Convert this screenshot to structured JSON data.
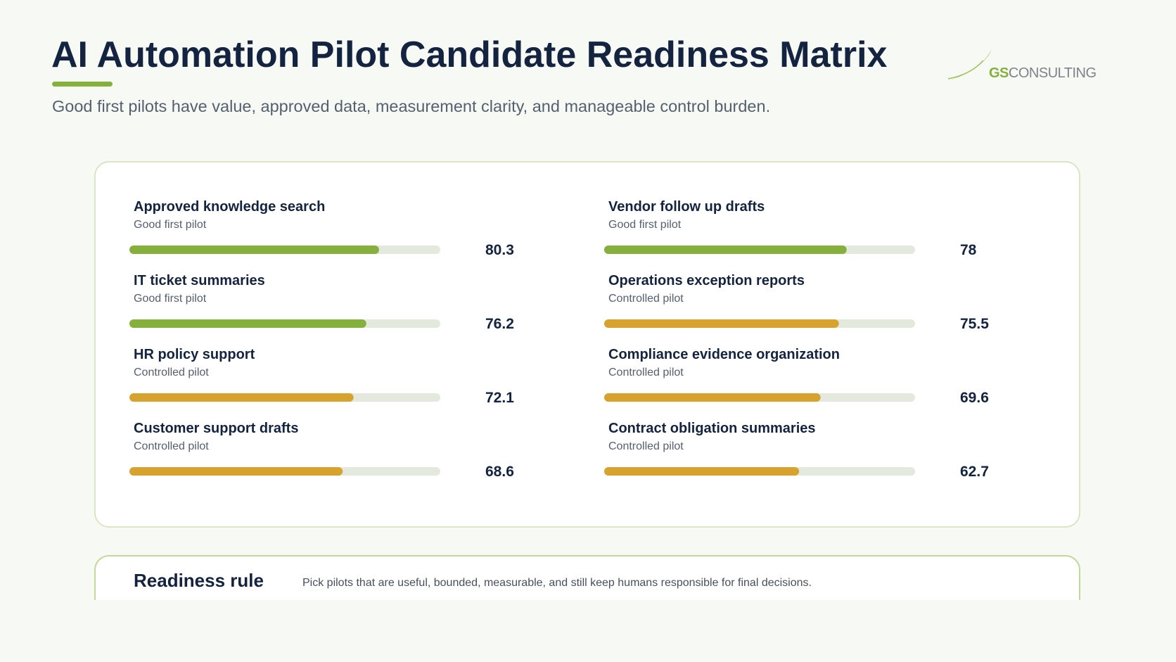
{
  "header": {
    "title": "AI Automation Pilot Candidate Readiness Matrix",
    "subtitle": "Good first pilots have value, approved data, measurement clarity, and manageable control burden.",
    "logo_accent": "GS",
    "logo_text": "CONSULTING"
  },
  "chart_data": {
    "type": "bar",
    "categories": [
      "Approved knowledge search",
      "Vendor follow up drafts",
      "IT ticket summaries",
      "Operations exception reports",
      "HR policy support",
      "Compliance evidence organization",
      "Customer support drafts",
      "Contract obligation summaries"
    ],
    "statuses": [
      "Good first pilot",
      "Good first pilot",
      "Good first pilot",
      "Controlled pilot",
      "Controlled pilot",
      "Controlled pilot",
      "Controlled pilot",
      "Controlled pilot"
    ],
    "values": [
      80.3,
      78,
      76.2,
      75.5,
      72.1,
      69.6,
      68.6,
      62.7
    ],
    "colors": [
      "#86b03c",
      "#86b03c",
      "#86b03c",
      "#d8a22e",
      "#d8a22e",
      "#d8a22e",
      "#d8a22e",
      "#d8a22e"
    ],
    "track_color": "#e3e9dc",
    "xlim": [
      0,
      100
    ]
  },
  "rule": {
    "title": "Readiness rule",
    "text": "Pick pilots that are useful, bounded, measurable, and still keep humans responsible for final decisions."
  }
}
